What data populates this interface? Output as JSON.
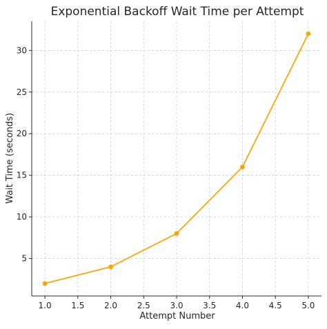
{
  "chart_data": {
    "type": "line",
    "title": "Exponential Backoff Wait Time per Attempt",
    "xlabel": "Attempt Number",
    "ylabel": "Wait Time (seconds)",
    "x": [
      1.0,
      2.0,
      3.0,
      4.0,
      5.0
    ],
    "series": [
      {
        "values": [
          2,
          4,
          8,
          16,
          32
        ],
        "color": "#ffa500",
        "marker": "circle"
      }
    ],
    "xlim": [
      0.8,
      5.2
    ],
    "ylim": [
      0.5,
      33.5
    ],
    "xticks": [
      1.0,
      1.5,
      2.0,
      2.5,
      3.0,
      3.5,
      4.0,
      4.5,
      5.0
    ],
    "xtick_labels": [
      "1.0",
      "1.5",
      "2.0",
      "2.5",
      "3.0",
      "3.5",
      "4.0",
      "4.5",
      "5.0"
    ],
    "yticks": [
      5,
      10,
      15,
      20,
      25,
      30
    ],
    "ytick_labels": [
      "5",
      "10",
      "15",
      "20",
      "25",
      "30"
    ],
    "grid": true,
    "grid_style": "dashed"
  }
}
